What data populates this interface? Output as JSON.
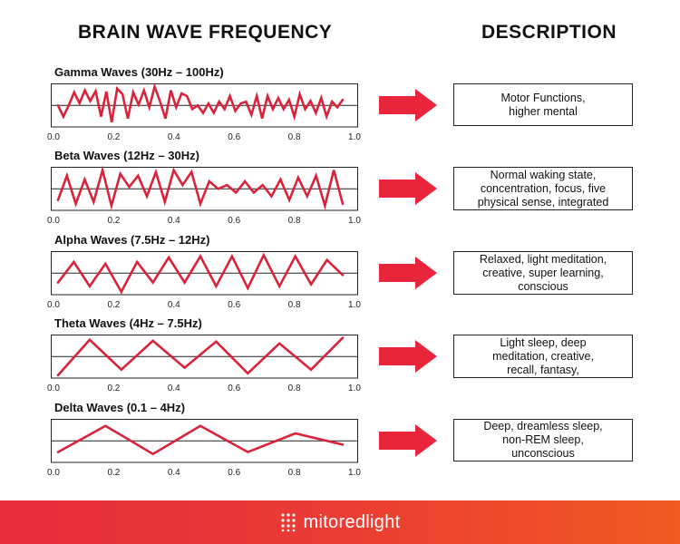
{
  "titles": {
    "left": "BRAIN WAVE FREQUENCY",
    "right": "DESCRIPTION"
  },
  "ticks": [
    "0.0",
    "0.2",
    "0.4",
    "0.6",
    "0.8",
    "1.0"
  ],
  "colors": {
    "wave": "#d9233b",
    "arrow": "#e8253b",
    "footer_start": "#e62b3c",
    "footer_end": "#f15a22"
  },
  "waves": [
    {
      "label": "Gamma Waves (30Hz – 100Hz)",
      "description": [
        "Motor Functions,",
        "higher mental"
      ],
      "signal": [
        0,
        -0.3,
        0,
        0.35,
        0.06,
        0.4,
        0.12,
        0.38,
        -0.3,
        0.37,
        -0.45,
        0.45,
        0.3,
        -0.35,
        0.35,
        0.02,
        0.4,
        -0.05,
        0.5,
        0.1,
        -0.35,
        0.4,
        -0.05,
        0.32,
        0.25,
        -0.1,
        0.0,
        -0.2,
        0.05,
        -0.2,
        0.1,
        -0.1,
        0.25,
        -0.15,
        0.05,
        0.1,
        -0.25,
        0.25,
        -0.35,
        0.25,
        -0.1,
        0.2,
        -0.1,
        0.15,
        -0.3,
        0.3,
        -0.1,
        0.12,
        -0.2,
        0.2,
        -0.3,
        0.1,
        -0.05,
        0.15
      ]
    },
    {
      "label": "Beta Waves (12Hz – 30Hz)",
      "description": [
        "Normal waking state,",
        "concentration, focus, five",
        "physical sense, integrated"
      ],
      "signal": [
        -0.3,
        0.35,
        -0.4,
        0.25,
        -0.35,
        0.5,
        -0.45,
        0.4,
        0.05,
        0.35,
        -0.2,
        0.45,
        -0.35,
        0.5,
        0.1,
        0.45,
        -0.4,
        0.2,
        0.0,
        0.1,
        -0.1,
        0.2,
        -0.1,
        0.1,
        -0.2,
        0.25,
        -0.3,
        0.3,
        -0.2,
        0.35,
        -0.45,
        0.5,
        -0.4
      ]
    },
    {
      "label": "Alpha Waves (7.5Hz – 12Hz)",
      "description": [
        "Relaxed, light meditation,",
        "creative, super learning,",
        "conscious"
      ],
      "signal": [
        -0.25,
        0.3,
        -0.35,
        0.25,
        -0.5,
        0.3,
        -0.25,
        0.42,
        -0.25,
        0.45,
        -0.35,
        0.45,
        -0.4,
        0.48,
        -0.35,
        0.45,
        -0.3,
        0.35,
        -0.05
      ]
    },
    {
      "label": "Theta Waves (4Hz – 7.5Hz)",
      "description": [
        "Light sleep, deep",
        "meditation, creative,",
        "recall, fantasy,"
      ],
      "signal": [
        -0.5,
        0.45,
        -0.35,
        0.42,
        -0.3,
        0.4,
        -0.45,
        0.35,
        -0.35,
        0.5
      ]
    },
    {
      "label": "Delta Waves (0.1 – 4Hz)",
      "description": [
        "Deep, dreamless sleep,",
        "non-REM sleep,",
        "unconscious"
      ],
      "signal": [
        -0.3,
        0.4,
        -0.35,
        0.4,
        -0.3,
        0.2,
        -0.1
      ]
    }
  ],
  "footer": {
    "brand": "mitoredlight",
    "logo_icon": "dot-grid-icon"
  }
}
